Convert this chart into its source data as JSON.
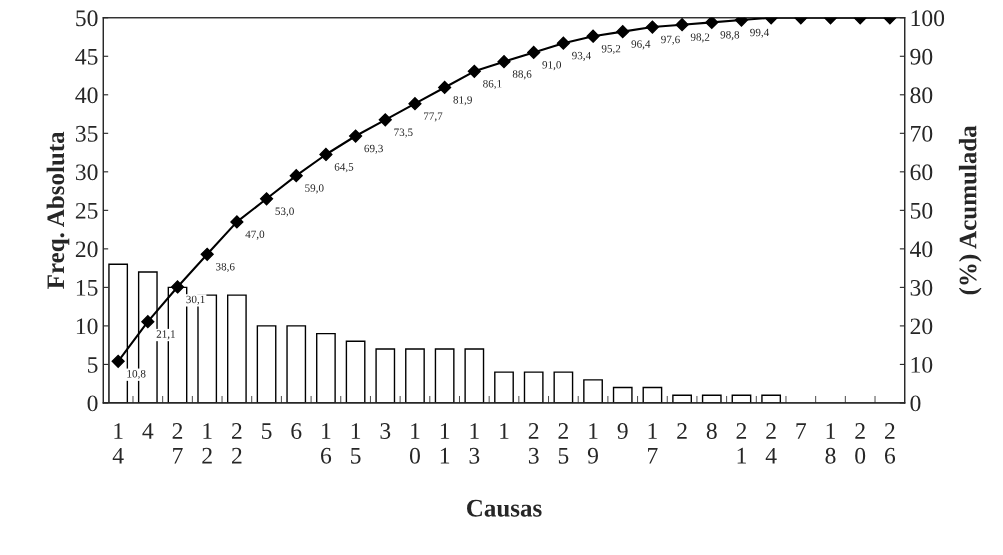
{
  "chart_data": {
    "type": "bar",
    "xlabel": "Causas",
    "ylabel": "Freq. Absoluta",
    "y2label": "(%) Acumulada",
    "categories": [
      "14",
      "4",
      "27",
      "12",
      "22",
      "5",
      "6",
      "16",
      "15",
      "3",
      "10",
      "11",
      "13",
      "1",
      "23",
      "25",
      "19",
      "9",
      "17",
      "2",
      "8",
      "21",
      "24",
      "7",
      "18",
      "20",
      "26"
    ],
    "series": [
      {
        "color": "#ffffff",
        "values": [
          18,
          17,
          15,
          14,
          14,
          10,
          10,
          9,
          8,
          7,
          7,
          7,
          7,
          4,
          4,
          4,
          3,
          2,
          2,
          1,
          1,
          1,
          1,
          0,
          0,
          0,
          0
        ]
      },
      {
        "type": "line",
        "axis": "y2",
        "color": "#000000",
        "marker": "diamond",
        "values": [
          10.8,
          21.1,
          30.1,
          38.6,
          47.0,
          53.0,
          59.0,
          64.5,
          69.3,
          73.5,
          77.7,
          81.9,
          86.1,
          88.6,
          91.0,
          93.4,
          95.2,
          96.4,
          97.6,
          98.2,
          98.8,
          99.4,
          100,
          100,
          100,
          100,
          100
        ],
        "value_labels": [
          "10,8",
          "21,1",
          "30,1",
          "38,6",
          "47,0",
          "53,0",
          "59,0",
          "64,5",
          "69,3",
          "73,5",
          "77,7",
          "81,9",
          "86,1",
          "88,6",
          "91,0",
          "93,4",
          "95,2",
          "96,4",
          "97,6",
          "98,2",
          "98,8",
          "99,4",
          null,
          null,
          null,
          null,
          null
        ]
      }
    ],
    "ylim": [
      0,
      50
    ],
    "yticks": [
      0,
      5,
      10,
      15,
      20,
      25,
      30,
      35,
      40,
      45,
      50
    ],
    "y2lim": [
      0,
      100
    ],
    "y2ticks": [
      0,
      10,
      20,
      30,
      40,
      50,
      60,
      70,
      80,
      90,
      100
    ]
  }
}
